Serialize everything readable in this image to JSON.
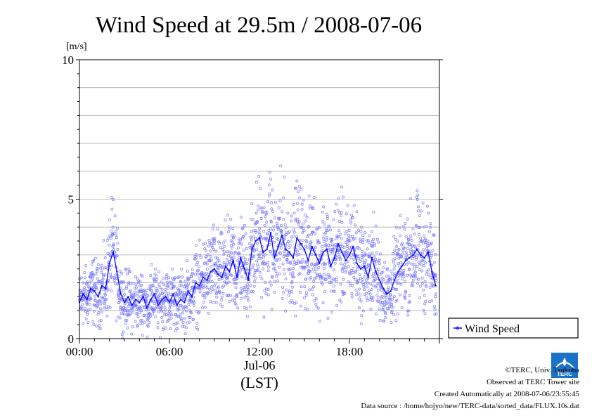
{
  "chart_data": {
    "type": "scatter",
    "title": "Wind Speed at 29.5m / 2008-07-06",
    "ylabel": "[m/s]",
    "xlabel": "(LST)",
    "date_label": "Jul-06",
    "ylim": [
      0,
      10
    ],
    "y_ticks": [
      {
        "value": 0,
        "label": "0"
      },
      {
        "value": 5,
        "label": "5"
      },
      {
        "value": 10,
        "label": "10"
      }
    ],
    "x_ticks": [
      {
        "hour": 0,
        "label": "00:00"
      },
      {
        "hour": 6,
        "label": "06:00"
      },
      {
        "hour": 12,
        "label": "12:00"
      },
      {
        "hour": 18,
        "label": "18:00"
      }
    ],
    "xlim_hours": [
      0,
      24
    ],
    "grid": "horizontal every 1 m/s",
    "legend": {
      "position": "right",
      "entry": "Wind Speed"
    },
    "series": [
      {
        "name": "Wind Speed",
        "color": "#0000ff",
        "scatter_color": "#7777ff",
        "hours": [
          0.0,
          0.25,
          0.5,
          0.75,
          1.0,
          1.25,
          1.5,
          1.75,
          2.0,
          2.25,
          2.5,
          2.75,
          3.0,
          3.25,
          3.5,
          3.75,
          4.0,
          4.25,
          4.5,
          4.75,
          5.0,
          5.25,
          5.5,
          5.75,
          6.0,
          6.25,
          6.5,
          6.75,
          7.0,
          7.25,
          7.5,
          7.75,
          8.0,
          8.25,
          8.5,
          8.75,
          9.0,
          9.25,
          9.5,
          9.75,
          10.0,
          10.25,
          10.5,
          10.75,
          11.0,
          11.25,
          11.5,
          11.75,
          12.0,
          12.25,
          12.5,
          12.75,
          13.0,
          13.25,
          13.5,
          13.75,
          14.0,
          14.25,
          14.5,
          14.75,
          15.0,
          15.25,
          15.5,
          15.75,
          16.0,
          16.25,
          16.5,
          16.75,
          17.0,
          17.25,
          17.5,
          17.75,
          18.0,
          18.25,
          18.5,
          18.75,
          19.0,
          19.25,
          19.5,
          19.75,
          20.0,
          20.25,
          20.5,
          20.75,
          21.0,
          21.25,
          21.5,
          21.75,
          22.0,
          22.25,
          22.5,
          22.75,
          23.0,
          23.25,
          23.5,
          23.75
        ],
        "values": [
          1.3,
          1.6,
          1.4,
          1.8,
          1.7,
          1.5,
          1.9,
          1.8,
          2.7,
          3.1,
          2.4,
          1.6,
          1.3,
          1.5,
          1.2,
          1.4,
          1.3,
          1.5,
          1.1,
          1.4,
          1.6,
          1.2,
          1.4,
          1.5,
          1.3,
          1.6,
          1.2,
          1.4,
          1.3,
          1.7,
          1.5,
          2.0,
          1.9,
          2.2,
          2.1,
          2.4,
          2.5,
          2.3,
          2.2,
          2.6,
          2.4,
          2.8,
          2.2,
          2.9,
          2.5,
          2.1,
          3.2,
          3.5,
          3.6,
          3.1,
          3.2,
          3.8,
          2.9,
          3.3,
          3.7,
          3.2,
          3.1,
          2.9,
          3.6,
          3.4,
          3.2,
          2.8,
          3.3,
          3.0,
          2.7,
          3.1,
          3.2,
          2.6,
          2.9,
          3.4,
          3.1,
          2.8,
          3.0,
          3.3,
          2.7,
          2.5,
          2.6,
          2.2,
          2.9,
          2.4,
          2.1,
          1.8,
          1.6,
          1.7,
          2.1,
          2.4,
          2.6,
          2.8,
          2.9,
          3.0,
          3.2,
          3.0,
          2.9,
          3.1,
          2.4,
          1.9
        ]
      }
    ]
  },
  "footer": {
    "copyright": "©TERC, Univ. Tsukuba",
    "observed": "Observed at TERC Tower site",
    "created": "Created Automatically at 2008-07-06/23:55:45",
    "source": "Data source : /home/hojyo/new/TERC-data/sorted_data/FLUX.10s.dat",
    "logo_text": "TERC"
  }
}
